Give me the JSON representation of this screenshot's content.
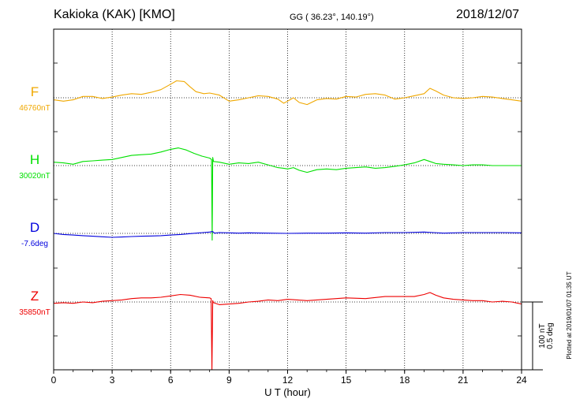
{
  "header": {
    "title": "Kakioka (KAK)  [KMO]",
    "coords": "GG ( 36.23°, 140.19°)",
    "date": "2018/12/07"
  },
  "chart_data": {
    "type": "line",
    "title": "Kakioka (KAK)  [KMO]",
    "xlabel": "U T (hour)",
    "xlim": [
      0,
      24
    ],
    "x_ticks": [
      "0",
      "3",
      "6",
      "9",
      "12",
      "15",
      "18",
      "21",
      "24"
    ],
    "grid": true,
    "scale": {
      "nT_label": "100 nT",
      "deg_label": "0.5 deg",
      "nT_per_bar": 100,
      "deg_per_bar": 0.5
    },
    "plotted_note": "Plotted at 2019/01/07 01:35 UT",
    "series": [
      {
        "name": "F",
        "baseline_label": "46760nT",
        "color": "#f0a800",
        "unit_per_bar": 100,
        "x": [
          0,
          0.5,
          1,
          1.5,
          2,
          2.5,
          3,
          3.5,
          4,
          4.5,
          5,
          5.5,
          6,
          6.3,
          6.7,
          7,
          7.3,
          7.7,
          8,
          8.5,
          9,
          9.5,
          10,
          10.5,
          11,
          11.5,
          11.8,
          12,
          12.3,
          12.6,
          13,
          13.5,
          14,
          14.5,
          15,
          15.5,
          16,
          16.5,
          17,
          17.5,
          18,
          18.5,
          19,
          19.3,
          19.6,
          20,
          20.5,
          21,
          21.5,
          22,
          22.5,
          23,
          23.5,
          24
        ],
        "y": [
          -3,
          -5,
          -3,
          2,
          2,
          -1,
          1,
          4,
          6,
          5,
          8,
          12,
          20,
          25,
          24,
          16,
          9,
          6,
          7,
          4,
          -5,
          -3,
          0,
          3,
          2,
          -2,
          -8,
          -5,
          0,
          -7,
          -10,
          -3,
          -1,
          -2,
          2,
          1,
          5,
          6,
          4,
          -2,
          0,
          3,
          6,
          14,
          10,
          4,
          0,
          -1,
          0,
          2,
          1,
          -1,
          -3,
          -5
        ]
      },
      {
        "name": "H",
        "baseline_label": "30020nT",
        "color": "#00e000",
        "unit_per_bar": 100,
        "x": [
          0,
          0.5,
          1,
          1.5,
          2,
          2.5,
          3,
          3.5,
          4,
          4.5,
          5,
          5.5,
          6,
          6.4,
          6.8,
          7.2,
          7.6,
          8.0,
          8.1,
          8.13,
          8.16,
          8.2,
          8.5,
          9,
          9.5,
          10,
          10.5,
          11,
          11.5,
          11.8,
          12,
          12.3,
          12.6,
          13,
          13.5,
          14,
          14.5,
          15,
          15.5,
          16,
          16.5,
          17,
          17.5,
          18,
          18.5,
          19,
          19.3,
          19.6,
          20,
          20.5,
          21,
          21.5,
          22,
          22.5,
          23,
          23.5,
          24
        ],
        "y": [
          5,
          4,
          2,
          6,
          7,
          8,
          9,
          12,
          15,
          16,
          17,
          20,
          24,
          26,
          23,
          18,
          14,
          11,
          9,
          -110,
          12,
          6,
          5,
          2,
          4,
          3,
          5,
          1,
          -3,
          -4,
          -5,
          -3,
          -7,
          -10,
          -6,
          -5,
          -6,
          -4,
          -3,
          -2,
          -4,
          -3,
          -1,
          1,
          4,
          9,
          6,
          3,
          2,
          1,
          0,
          1,
          1,
          0,
          0,
          0,
          0
        ]
      },
      {
        "name": "D",
        "baseline_label": "-7.6deg",
        "color": "#0000dd",
        "unit_per_bar": 0.5,
        "x": [
          0,
          0.5,
          1,
          1.5,
          2,
          2.5,
          3,
          3.5,
          4,
          4.5,
          5,
          5.5,
          6,
          6.5,
          7,
          7.5,
          8,
          8.15,
          8.25,
          8.5,
          9,
          9.5,
          10,
          11,
          12,
          13,
          14,
          15,
          16,
          17,
          18,
          19,
          19.5,
          20,
          21,
          22,
          23,
          24
        ],
        "y": [
          0,
          -0.008,
          -0.012,
          -0.017,
          -0.021,
          -0.025,
          -0.029,
          -0.027,
          -0.023,
          -0.021,
          -0.019,
          -0.017,
          -0.012,
          -0.008,
          -0.002,
          0.004,
          0.01,
          0.014,
          0.002,
          0.006,
          0.004,
          0.002,
          0.004,
          0.002,
          0,
          0.002,
          0.002,
          0.004,
          0.002,
          0.006,
          0.006,
          0.01,
          0.006,
          0.002,
          0.006,
          0.006,
          0.006,
          0.004
        ]
      },
      {
        "name": "Z",
        "baseline_label": "35850nT",
        "color": "#ee0000",
        "unit_per_bar": 100,
        "x": [
          0,
          0.5,
          1,
          1.5,
          2,
          2.5,
          3,
          3.5,
          4,
          4.5,
          5,
          5.5,
          6,
          6.5,
          7,
          7.5,
          8,
          8.08,
          8.12,
          8.16,
          8.2,
          8.5,
          9,
          9.5,
          10,
          10.5,
          11,
          11.5,
          12,
          12.5,
          13,
          13.5,
          14,
          15,
          16,
          17,
          18,
          18.5,
          19,
          19.3,
          19.6,
          20,
          20.5,
          21,
          21.5,
          22,
          22.5,
          23,
          23.5,
          24
        ],
        "y": [
          -2,
          -1,
          -2,
          0,
          -1,
          1,
          2,
          3,
          5,
          6,
          6,
          7,
          9,
          11,
          10,
          7,
          6,
          5,
          -128,
          2,
          -1,
          -4,
          -3,
          -2,
          0,
          1,
          3,
          2,
          4,
          3,
          2,
          3,
          4,
          6,
          5,
          8,
          8,
          8,
          11,
          14,
          10,
          6,
          4,
          3,
          2,
          2,
          0,
          1,
          0,
          -3
        ]
      }
    ]
  }
}
